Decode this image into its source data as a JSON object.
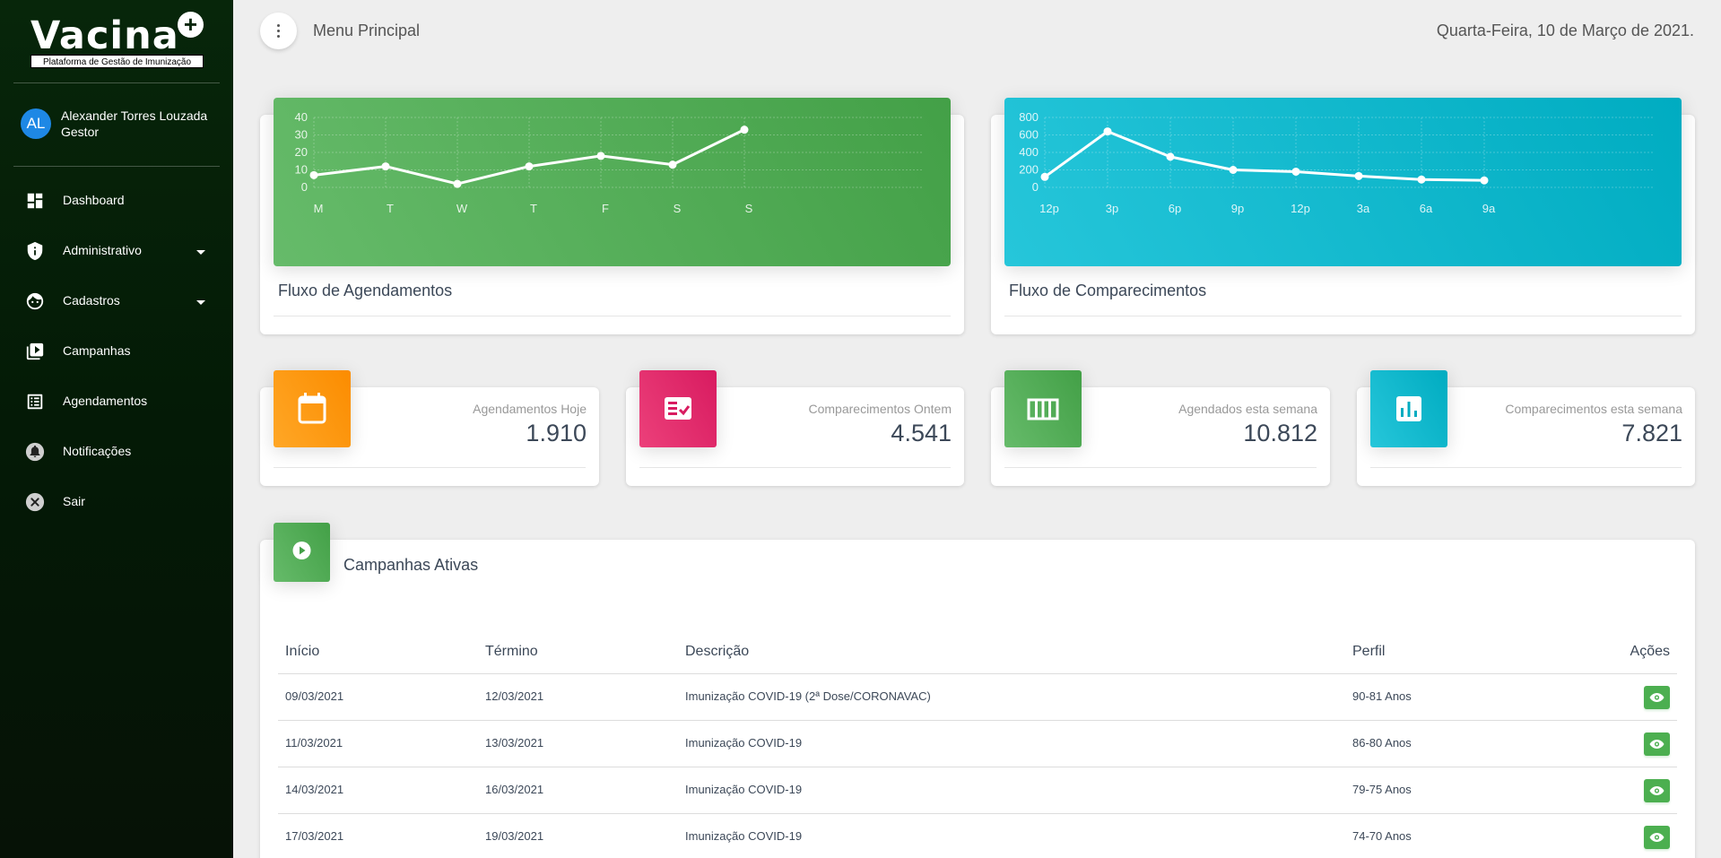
{
  "brand": {
    "name": "Vacina",
    "plus": "+",
    "subtitle": "Plataforma de Gestão de Imunização"
  },
  "user": {
    "initials": "AL",
    "name": "Alexander Torres Louzada",
    "role": "Gestor"
  },
  "sidebar": {
    "items": [
      {
        "label": "Dashboard",
        "icon": "dashboard-icon"
      },
      {
        "label": "Administrativo",
        "icon": "shield-icon",
        "has_submenu": true
      },
      {
        "label": "Cadastros",
        "icon": "face-icon",
        "has_submenu": true
      },
      {
        "label": "Campanhas",
        "icon": "play-library-icon"
      },
      {
        "label": "Agendamentos",
        "icon": "list-icon"
      },
      {
        "label": "Notificações",
        "icon": "bell-icon"
      },
      {
        "label": "Sair",
        "icon": "close-circle-icon"
      }
    ]
  },
  "header": {
    "title": "Menu Principal",
    "date": "Quarta-Feira, 10 de Março de 2021."
  },
  "charts": {
    "agendamentos_title": "Fluxo de Agendamentos",
    "comparecimentos_title": "Fluxo de Comparecimentos"
  },
  "chart_data": [
    {
      "type": "line",
      "title": "Fluxo de Agendamentos",
      "categories": [
        "M",
        "T",
        "W",
        "T",
        "F",
        "S",
        "S"
      ],
      "values": [
        7,
        12,
        2,
        12,
        18,
        13,
        33
      ],
      "ylim": [
        0,
        40
      ],
      "yticks": [
        0,
        10,
        20,
        30,
        40
      ],
      "grid": true,
      "color": "#ffffff",
      "background": "#4caf50"
    },
    {
      "type": "line",
      "title": "Fluxo de Comparecimentos",
      "categories": [
        "12p",
        "3p",
        "6p",
        "9p",
        "12p",
        "3a",
        "6a",
        "9a"
      ],
      "values": [
        120,
        640,
        350,
        200,
        180,
        130,
        90,
        80
      ],
      "ylim": [
        0,
        800
      ],
      "yticks": [
        0,
        200,
        400,
        600,
        800
      ],
      "grid": true,
      "color": "#ffffff",
      "background": "#00bcd4"
    }
  ],
  "stats": [
    {
      "label": "Agendamentos Hoje",
      "value": "1.910",
      "icon": "calendar-icon",
      "color": "#ff9800"
    },
    {
      "label": "Comparecimentos Ontem",
      "value": "4.541",
      "icon": "checklist-icon",
      "color": "#e91e63"
    },
    {
      "label": "Agendados esta semana",
      "value": "10.812",
      "icon": "view-week-icon",
      "color": "#4caf50"
    },
    {
      "label": "Comparecimentos esta semana",
      "value": "7.821",
      "icon": "bar-chart-icon",
      "color": "#00bcd4"
    }
  ],
  "campaigns": {
    "title": "Campanhas Ativas",
    "columns": [
      "Início",
      "Término",
      "Descrição",
      "Perfil",
      "Ações"
    ],
    "rows": [
      {
        "inicio": "09/03/2021",
        "termino": "12/03/2021",
        "descricao": "Imunização COVID-19 (2ª Dose/CORONAVAC)",
        "perfil": "90-81 Anos"
      },
      {
        "inicio": "11/03/2021",
        "termino": "13/03/2021",
        "descricao": "Imunização COVID-19",
        "perfil": "86-80 Anos"
      },
      {
        "inicio": "14/03/2021",
        "termino": "16/03/2021",
        "descricao": "Imunização COVID-19",
        "perfil": "79-75 Anos"
      },
      {
        "inicio": "17/03/2021",
        "termino": "19/03/2021",
        "descricao": "Imunização COVID-19",
        "perfil": "74-70 Anos"
      }
    ]
  }
}
